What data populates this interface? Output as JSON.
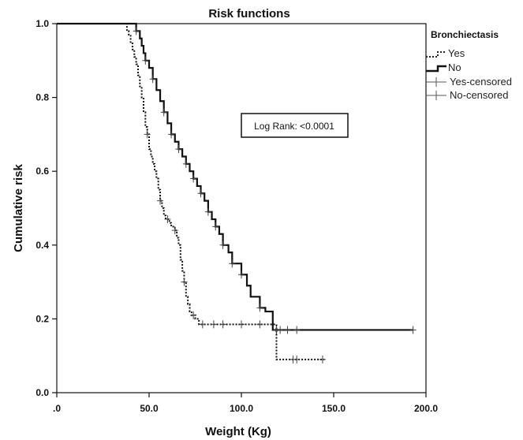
{
  "chart_data": {
    "type": "line",
    "title": "Risk functions",
    "xlabel": "Weight (Kg)",
    "ylabel": "Cumulative risk",
    "xlim": [
      0,
      200
    ],
    "ylim": [
      0,
      1.0
    ],
    "xticks": [
      0,
      50,
      100,
      150,
      200
    ],
    "xtick_labels": [
      ".0",
      "50.0",
      "100.0",
      "150.0",
      "200.0"
    ],
    "yticks": [
      0,
      0.2,
      0.4,
      0.6,
      0.8,
      1.0
    ],
    "ytick_labels": [
      "0.0",
      "0.2",
      "0.4",
      "0.6",
      "0.8",
      "1.0"
    ],
    "grid": false,
    "legend": {
      "title": "Bronchiectasis",
      "placement": "right",
      "entries": [
        {
          "label": "Yes",
          "style": "dotted-step"
        },
        {
          "label": "No",
          "style": "solid-step"
        },
        {
          "label": "Yes-censored",
          "style": "censor-mark"
        },
        {
          "label": "No-censored",
          "style": "censor-mark"
        }
      ]
    },
    "annotation": "Log Rank: <0.0001",
    "series": [
      {
        "name": "Yes",
        "style": "dotted",
        "x": [
          0,
          36,
          38,
          39,
          40,
          41,
          42,
          43,
          44,
          45,
          46,
          47,
          48,
          49,
          50,
          51,
          52,
          53,
          54,
          55,
          56,
          57,
          58,
          59,
          60,
          61,
          62,
          63,
          64,
          65,
          66,
          67,
          68,
          69,
          70,
          71,
          72,
          73,
          75,
          77,
          80,
          100,
          115,
          119,
          145
        ],
        "y": [
          1.0,
          1.0,
          0.98,
          0.97,
          0.95,
          0.93,
          0.91,
          0.89,
          0.86,
          0.83,
          0.8,
          0.76,
          0.72,
          0.7,
          0.66,
          0.64,
          0.62,
          0.6,
          0.58,
          0.55,
          0.52,
          0.5,
          0.48,
          0.47,
          0.47,
          0.46,
          0.45,
          0.45,
          0.44,
          0.42,
          0.4,
          0.36,
          0.33,
          0.3,
          0.26,
          0.24,
          0.22,
          0.21,
          0.2,
          0.185,
          0.185,
          0.185,
          0.185,
          0.09,
          0.09
        ]
      },
      {
        "name": "No",
        "style": "solid",
        "x": [
          0,
          40,
          43,
          45,
          46,
          47,
          48,
          50,
          52,
          54,
          56,
          58,
          60,
          62,
          64,
          66,
          68,
          70,
          72,
          74,
          76,
          78,
          80,
          82,
          84,
          86,
          88,
          90,
          93,
          95,
          100,
          103,
          105,
          110,
          113,
          117,
          120,
          193
        ],
        "y": [
          1.0,
          1.0,
          0.98,
          0.96,
          0.94,
          0.92,
          0.9,
          0.88,
          0.85,
          0.82,
          0.79,
          0.76,
          0.73,
          0.7,
          0.68,
          0.66,
          0.64,
          0.62,
          0.6,
          0.58,
          0.56,
          0.54,
          0.52,
          0.49,
          0.47,
          0.45,
          0.43,
          0.4,
          0.38,
          0.35,
          0.32,
          0.29,
          0.26,
          0.23,
          0.22,
          0.17,
          0.17,
          0.17
        ]
      }
    ],
    "censored": [
      {
        "series": "Yes",
        "x": [
          49,
          56,
          60,
          64,
          69,
          74,
          79,
          85,
          90,
          100,
          110,
          128,
          130,
          144
        ],
        "y": [
          0.7,
          0.52,
          0.47,
          0.44,
          0.3,
          0.21,
          0.185,
          0.185,
          0.185,
          0.185,
          0.185,
          0.09,
          0.09,
          0.09
        ]
      },
      {
        "series": "No",
        "x": [
          43,
          48,
          52,
          58,
          62,
          66,
          70,
          74,
          78,
          82,
          86,
          90,
          95,
          100,
          110,
          119,
          121,
          125,
          130,
          193
        ],
        "y": [
          0.98,
          0.9,
          0.85,
          0.76,
          0.7,
          0.66,
          0.62,
          0.58,
          0.54,
          0.49,
          0.45,
          0.4,
          0.35,
          0.32,
          0.23,
          0.17,
          0.17,
          0.17,
          0.17,
          0.17
        ]
      }
    ]
  }
}
